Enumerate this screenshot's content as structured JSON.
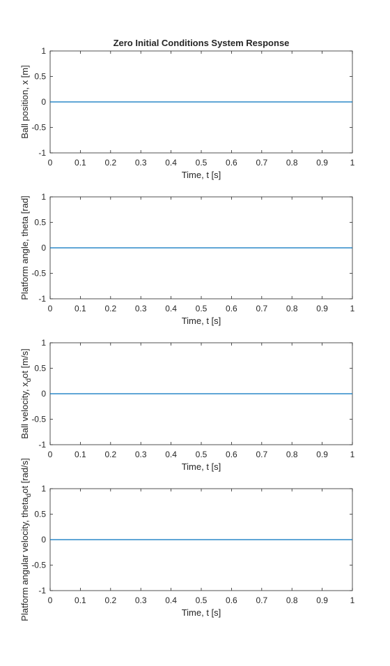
{
  "chart_data": [
    {
      "type": "line",
      "title": "Zero Initial Conditions System Response",
      "xlabel": "Time, t [s]",
      "ylabel": "Ball position, x [m]",
      "xlim": [
        0,
        1
      ],
      "ylim": [
        -1,
        1
      ],
      "x_ticks": [
        "0",
        "0.1",
        "0.2",
        "0.3",
        "0.4",
        "0.5",
        "0.6",
        "0.7",
        "0.8",
        "0.9",
        "1"
      ],
      "y_ticks": [
        "-1",
        "-0.5",
        "0",
        "0.5",
        "1"
      ],
      "grid": false,
      "series": [
        {
          "x": [
            0,
            1
          ],
          "y": [
            0,
            0
          ],
          "color": "#0072BD"
        }
      ]
    },
    {
      "type": "line",
      "title": "",
      "xlabel": "Time, t [s]",
      "ylabel": "Platform angle, theta [rad]",
      "xlim": [
        0,
        1
      ],
      "ylim": [
        -1,
        1
      ],
      "x_ticks": [
        "0",
        "0.1",
        "0.2",
        "0.3",
        "0.4",
        "0.5",
        "0.6",
        "0.7",
        "0.8",
        "0.9",
        "1"
      ],
      "y_ticks": [
        "-1",
        "-0.5",
        "0",
        "0.5",
        "1"
      ],
      "grid": false,
      "series": [
        {
          "x": [
            0,
            1
          ],
          "y": [
            0,
            0
          ],
          "color": "#0072BD"
        }
      ]
    },
    {
      "type": "line",
      "title": "",
      "xlabel": "Time, t [s]",
      "ylabel": {
        "pre": "Ball velocity, x",
        "sub": "d",
        "post": "ot [m/s]"
      },
      "xlim": [
        0,
        1
      ],
      "ylim": [
        -1,
        1
      ],
      "x_ticks": [
        "0",
        "0.1",
        "0.2",
        "0.3",
        "0.4",
        "0.5",
        "0.6",
        "0.7",
        "0.8",
        "0.9",
        "1"
      ],
      "y_ticks": [
        "-1",
        "-0.5",
        "0",
        "0.5",
        "1"
      ],
      "grid": false,
      "series": [
        {
          "x": [
            0,
            1
          ],
          "y": [
            0,
            0
          ],
          "color": "#0072BD"
        }
      ]
    },
    {
      "type": "line",
      "title": "",
      "xlabel": "Time, t [s]",
      "ylabel": {
        "pre": "Platform angular velocity, theta",
        "sub": "d",
        "post": "ot [rad/s]"
      },
      "xlim": [
        0,
        1
      ],
      "ylim": [
        -1,
        1
      ],
      "x_ticks": [
        "0",
        "0.1",
        "0.2",
        "0.3",
        "0.4",
        "0.5",
        "0.6",
        "0.7",
        "0.8",
        "0.9",
        "1"
      ],
      "y_ticks": [
        "-1",
        "-0.5",
        "0",
        "0.5",
        "1"
      ],
      "grid": false,
      "series": [
        {
          "x": [
            0,
            1
          ],
          "y": [
            0,
            0
          ],
          "color": "#0072BD"
        }
      ]
    }
  ],
  "style": {
    "axis_color": "#262626",
    "background": "#ffffff"
  }
}
